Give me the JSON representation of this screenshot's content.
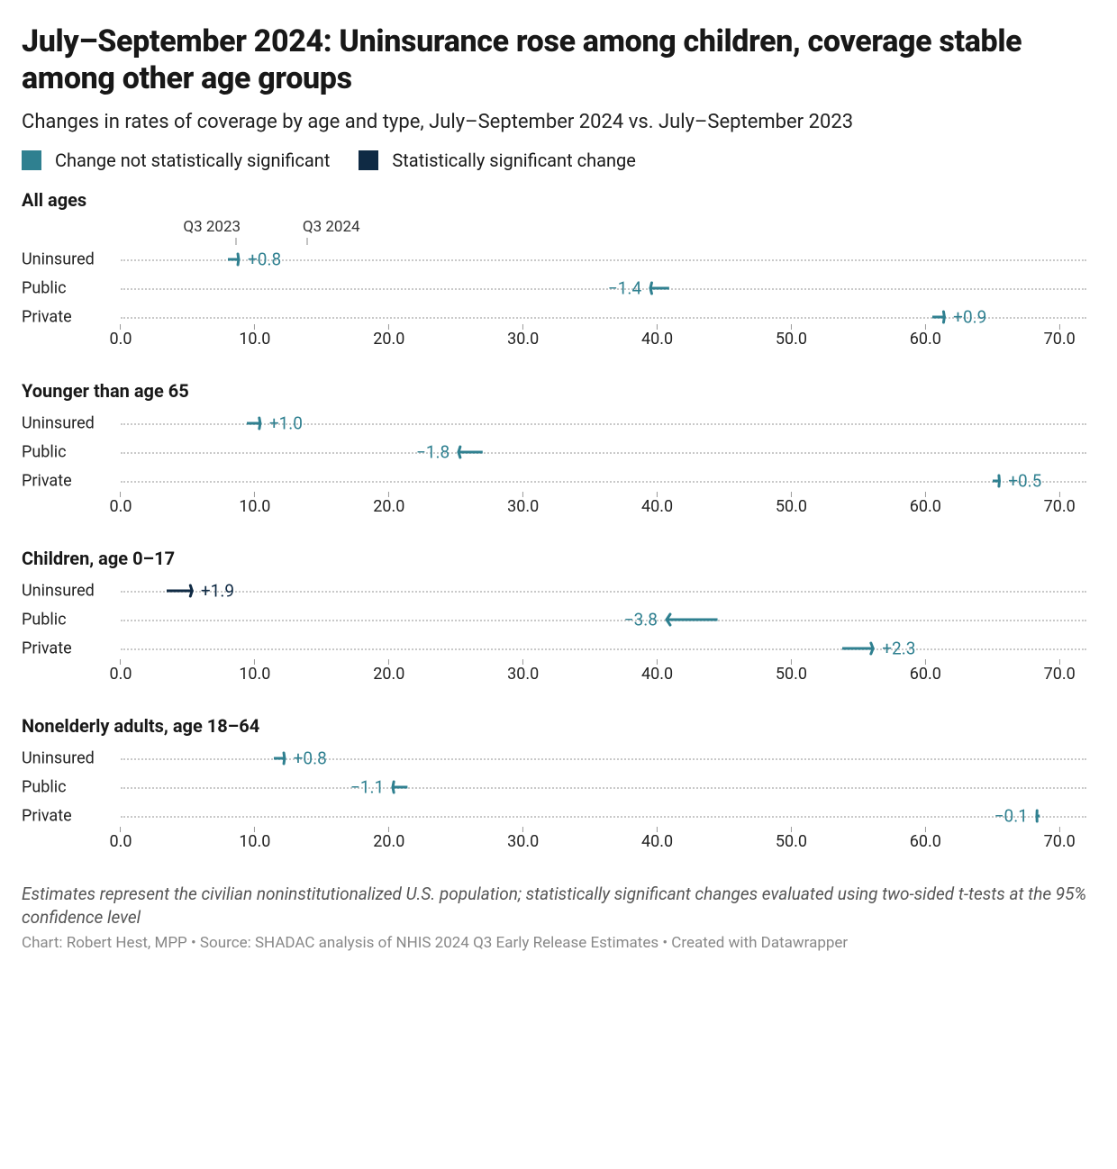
{
  "title": "July–September 2024: Uninsurance rose among children, coverage stable among other age groups",
  "subtitle": "Changes in rates of coverage by age and type, July–September 2024 vs. July–September 2023",
  "legend": {
    "not_sig": {
      "label": "Change not statistically significant",
      "color": "#2f8090"
    },
    "sig": {
      "label": "Statistically significant change",
      "color": "#0f2a44"
    }
  },
  "axis": {
    "xmin": 0.0,
    "xmax": 72.0,
    "ticks": [
      0.0,
      10.0,
      20.0,
      30.0,
      40.0,
      50.0,
      60.0,
      70.0
    ],
    "tick_format": "fixed1"
  },
  "header_labels": {
    "left": {
      "text": "Q3 2023",
      "x": 8.6
    },
    "right": {
      "text": "Q3 2024",
      "x": 13.9
    }
  },
  "colors": {
    "grid": "#c9c9c9",
    "bg": "#ffffff",
    "text": "#181818"
  },
  "stroke_width": 3,
  "arrowhead": 7,
  "panels": [
    {
      "title": "All ages",
      "show_header_labels": true,
      "rows": [
        {
          "category": "Uninsured",
          "start": 8.0,
          "end": 8.8,
          "delta": "+0.8",
          "significant": false
        },
        {
          "category": "Public",
          "start": 40.9,
          "end": 39.5,
          "delta": "−1.4",
          "significant": false
        },
        {
          "category": "Private",
          "start": 60.5,
          "end": 61.4,
          "delta": "+0.9",
          "significant": false
        }
      ]
    },
    {
      "title": "Younger than age 65",
      "rows": [
        {
          "category": "Uninsured",
          "start": 9.4,
          "end": 10.4,
          "delta": "+1.0",
          "significant": false
        },
        {
          "category": "Public",
          "start": 27.0,
          "end": 25.2,
          "delta": "−1.8",
          "significant": false
        },
        {
          "category": "Private",
          "start": 65.0,
          "end": 65.5,
          "delta": "+0.5",
          "significant": false
        }
      ]
    },
    {
      "title": "Children, age 0–17",
      "rows": [
        {
          "category": "Uninsured",
          "start": 3.4,
          "end": 5.3,
          "delta": "+1.9",
          "significant": true
        },
        {
          "category": "Public",
          "start": 44.5,
          "end": 40.7,
          "delta": "−3.8",
          "significant": false
        },
        {
          "category": "Private",
          "start": 53.8,
          "end": 56.1,
          "delta": "+2.3",
          "significant": false
        }
      ]
    },
    {
      "title": "Nonelderly adults, age 18–64",
      "rows": [
        {
          "category": "Uninsured",
          "start": 11.4,
          "end": 12.2,
          "delta": "+0.8",
          "significant": false
        },
        {
          "category": "Public",
          "start": 21.4,
          "end": 20.3,
          "delta": "−1.1",
          "significant": false
        },
        {
          "category": "Private",
          "start": 68.4,
          "end": 68.3,
          "delta": "−0.1",
          "significant": false
        }
      ]
    }
  ],
  "footnote": "Estimates represent the civilian noninstitutionalized U.S. population; statistically significant changes evaluated using two-sided t-tests at the 95% confidence level",
  "credit": "Chart: Robert Hest, MPP • Source: SHADAC analysis of NHIS 2024 Q3 Early Release Estimates • Created with Datawrapper"
}
